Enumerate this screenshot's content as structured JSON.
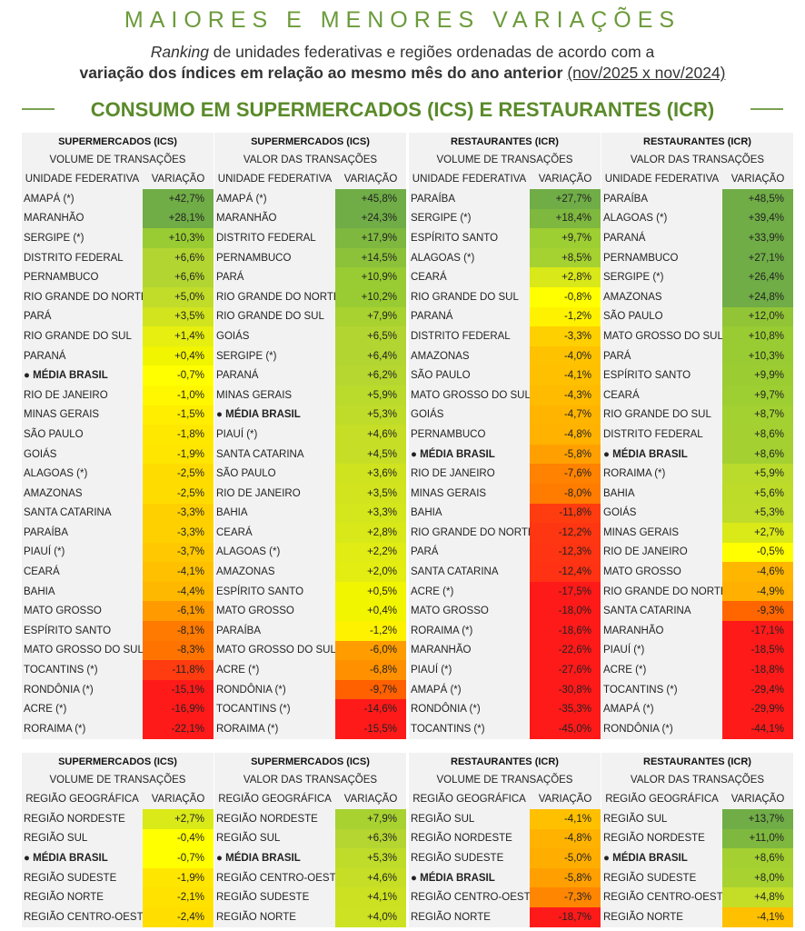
{
  "header": {
    "title": "MAIORES E MENORES VARIAÇÕES",
    "subtitle_italic": "Ranking",
    "subtitle_line1_rest": " de unidades federativas e regiões ordenadas de acordo com a",
    "subtitle_bold": "variação dos índices em relação ao mesmo mês do ano anterior",
    "subtitle_period": "(nov/2025 x nov/2024)",
    "section_title": "CONSUMO EM SUPERMERCADOS (ICS) E RESTAURANTES (ICR)"
  },
  "uf_tables": [
    {
      "group": "SUPERMERCADOS (ICS)",
      "metric": "VOLUME DE TRANSAÇÕES",
      "col_name": "UNIDADE FEDERATIVA",
      "col_value": "VARIAÇÃO",
      "rows": [
        {
          "name": "AMAPÁ (*)",
          "value": "+42,7%",
          "color": "#70ad47"
        },
        {
          "name": "MARANHÃO",
          "value": "+28,1%",
          "color": "#70ad47"
        },
        {
          "name": "SERGIPE (*)",
          "value": "+10,3%",
          "color": "#99cc33"
        },
        {
          "name": "DISTRITO FEDERAL",
          "value": "+6,6%",
          "color": "#b3d532"
        },
        {
          "name": "PERNAMBUCO",
          "value": "+6,6%",
          "color": "#b3d532"
        },
        {
          "name": "RIO GRANDE DO NORTE",
          "value": "+5,0%",
          "color": "#c2dc2a"
        },
        {
          "name": "PARÁ",
          "value": "+3,5%",
          "color": "#d1e41e"
        },
        {
          "name": "RIO GRANDE DO SUL",
          "value": "+1,4%",
          "color": "#e6ef10"
        },
        {
          "name": "PARANÁ",
          "value": "+0,4%",
          "color": "#f2f500"
        },
        {
          "name": "● MÉDIA BRASIL",
          "value": "-0,7%",
          "color": "#ffff00",
          "bold": true
        },
        {
          "name": "RIO DE JANEIRO",
          "value": "-1,0%",
          "color": "#fff700"
        },
        {
          "name": "MINAS GERAIS",
          "value": "-1,5%",
          "color": "#ffee00"
        },
        {
          "name": "SÃO PAULO",
          "value": "-1,8%",
          "color": "#ffe800"
        },
        {
          "name": "GOIÁS",
          "value": "-1,9%",
          "color": "#ffe600"
        },
        {
          "name": "ALAGOAS (*)",
          "value": "-2,5%",
          "color": "#ffdc00"
        },
        {
          "name": "AMAZONAS",
          "value": "-2,5%",
          "color": "#ffdc00"
        },
        {
          "name": "SANTA CATARINA",
          "value": "-3,3%",
          "color": "#ffd000"
        },
        {
          "name": "PARAÍBA",
          "value": "-3,3%",
          "color": "#ffd000"
        },
        {
          "name": "PIAUÍ (*)",
          "value": "-3,7%",
          "color": "#ffc800"
        },
        {
          "name": "CEARÁ",
          "value": "-4,1%",
          "color": "#ffc000"
        },
        {
          "name": "BAHIA",
          "value": "-4,4%",
          "color": "#ffb800"
        },
        {
          "name": "MATO GROSSO",
          "value": "-6,1%",
          "color": "#ff9a00"
        },
        {
          "name": "ESPÍRITO SANTO",
          "value": "-8,1%",
          "color": "#ff7a00"
        },
        {
          "name": "MATO GROSSO DO SUL",
          "value": "-8,3%",
          "color": "#ff7400"
        },
        {
          "name": "TOCANTINS (*)",
          "value": "-11,8%",
          "color": "#ff3c10"
        },
        {
          "name": "RONDÔNIA (*)",
          "value": "-15,1%",
          "color": "#ff1a1a"
        },
        {
          "name": "ACRE (*)",
          "value": "-16,9%",
          "color": "#ff1a1a"
        },
        {
          "name": "RORAIMA (*)",
          "value": "-22,1%",
          "color": "#ff1a1a"
        }
      ]
    },
    {
      "group": "SUPERMERCADOS (ICS)",
      "metric": "VALOR DAS TRANSAÇÕES",
      "col_name": "UNIDADE FEDERATIVA",
      "col_value": "VARIAÇÃO",
      "rows": [
        {
          "name": "AMAPÁ (*)",
          "value": "+45,8%",
          "color": "#70ad47"
        },
        {
          "name": "MARANHÃO",
          "value": "+24,3%",
          "color": "#70ad47"
        },
        {
          "name": "DISTRITO FEDERAL",
          "value": "+17,9%",
          "color": "#7fb83f"
        },
        {
          "name": "PERNAMBUCO",
          "value": "+14,5%",
          "color": "#8cc23a"
        },
        {
          "name": "PARÁ",
          "value": "+10,9%",
          "color": "#99cc33"
        },
        {
          "name": "RIO GRANDE DO NORTE",
          "value": "+10,2%",
          "color": "#99cc33"
        },
        {
          "name": "RIO GRANDE DO SUL",
          "value": "+7,9%",
          "color": "#a8d230"
        },
        {
          "name": "GOIÁS",
          "value": "+6,5%",
          "color": "#b3d532"
        },
        {
          "name": "SERGIPE (*)",
          "value": "+6,4%",
          "color": "#b3d532"
        },
        {
          "name": "PARANÁ",
          "value": "+6,2%",
          "color": "#b6d730"
        },
        {
          "name": "MINAS GERAIS",
          "value": "+5,9%",
          "color": "#badb2c"
        },
        {
          "name": "● MÉDIA BRASIL",
          "value": "+5,3%",
          "color": "#c0dc2a",
          "bold": true
        },
        {
          "name": "PIAUÍ (*)",
          "value": "+4,6%",
          "color": "#c6df26"
        },
        {
          "name": "SANTA CATARINA",
          "value": "+4,5%",
          "color": "#c6df26"
        },
        {
          "name": "SÃO PAULO",
          "value": "+3,6%",
          "color": "#cfe31e"
        },
        {
          "name": "RIO DE JANEIRO",
          "value": "+3,5%",
          "color": "#d1e41e"
        },
        {
          "name": "BAHIA",
          "value": "+3,3%",
          "color": "#d4e61c"
        },
        {
          "name": "CEARÁ",
          "value": "+2,8%",
          "color": "#d9e818"
        },
        {
          "name": "ALAGOAS (*)",
          "value": "+2,2%",
          "color": "#e0ec14"
        },
        {
          "name": "AMAZONAS",
          "value": "+2,0%",
          "color": "#e3ed12"
        },
        {
          "name": "ESPÍRITO SANTO",
          "value": "+0,5%",
          "color": "#f2f500"
        },
        {
          "name": "MATO GROSSO",
          "value": "+0,4%",
          "color": "#f2f500"
        },
        {
          "name": "PARAÍBA",
          "value": "-1,2%",
          "color": "#fff200"
        },
        {
          "name": "MATO GROSSO DO SUL",
          "value": "-6,0%",
          "color": "#ff9c00"
        },
        {
          "name": "ACRE (*)",
          "value": "-6,8%",
          "color": "#ff9000"
        },
        {
          "name": "RONDÔNIA (*)",
          "value": "-9,7%",
          "color": "#ff6000"
        },
        {
          "name": "TOCANTINS (*)",
          "value": "-14,6%",
          "color": "#ff1a1a"
        },
        {
          "name": "RORAIMA (*)",
          "value": "-15,5%",
          "color": "#ff1a1a"
        }
      ]
    },
    {
      "group": "RESTAURANTES (ICR)",
      "metric": "VOLUME DE TRANSAÇÕES",
      "col_name": "UNIDADE FEDERATIVA",
      "col_value": "VARIAÇÃO",
      "rows": [
        {
          "name": "PARAÍBA",
          "value": "+27,7%",
          "color": "#70ad47"
        },
        {
          "name": "SERGIPE (*)",
          "value": "+18,4%",
          "color": "#7fb83f"
        },
        {
          "name": "ESPÍRITO SANTO",
          "value": "+9,7%",
          "color": "#9dce32"
        },
        {
          "name": "ALAGOAS (*)",
          "value": "+8,5%",
          "color": "#a5d131"
        },
        {
          "name": "CEARÁ",
          "value": "+2,8%",
          "color": "#d9e818"
        },
        {
          "name": "RIO GRANDE DO SUL",
          "value": "-0,8%",
          "color": "#ffff00"
        },
        {
          "name": "PARANÁ",
          "value": "-1,2%",
          "color": "#fff200"
        },
        {
          "name": "DISTRITO FEDERAL",
          "value": "-3,3%",
          "color": "#ffd000"
        },
        {
          "name": "AMAZONAS",
          "value": "-4,0%",
          "color": "#ffc200"
        },
        {
          "name": "SÃO PAULO",
          "value": "-4,1%",
          "color": "#ffc000"
        },
        {
          "name": "MATO GROSSO DO SUL",
          "value": "-4,3%",
          "color": "#ffbb00"
        },
        {
          "name": "GOIÁS",
          "value": "-4,7%",
          "color": "#ffb400"
        },
        {
          "name": "PERNAMBUCO",
          "value": "-4,8%",
          "color": "#ffb200"
        },
        {
          "name": "● MÉDIA BRASIL",
          "value": "-5,8%",
          "color": "#ffa000",
          "bold": true
        },
        {
          "name": "RIO DE JANEIRO",
          "value": "-7,6%",
          "color": "#ff8200"
        },
        {
          "name": "MINAS GERAIS",
          "value": "-8,0%",
          "color": "#ff7c00"
        },
        {
          "name": "BAHIA",
          "value": "-11,8%",
          "color": "#ff3c10"
        },
        {
          "name": "RIO GRANDE DO NORTE",
          "value": "-12,2%",
          "color": "#ff3612"
        },
        {
          "name": "PARÁ",
          "value": "-12,3%",
          "color": "#ff3412"
        },
        {
          "name": "SANTA CATARINA",
          "value": "-12,4%",
          "color": "#ff3214"
        },
        {
          "name": "ACRE (*)",
          "value": "-17,5%",
          "color": "#ff1a1a"
        },
        {
          "name": "MATO GROSSO",
          "value": "-18,0%",
          "color": "#ff1a1a"
        },
        {
          "name": "RORAIMA (*)",
          "value": "-18,6%",
          "color": "#ff1a1a"
        },
        {
          "name": "MARANHÃO",
          "value": "-22,6%",
          "color": "#ff1a1a"
        },
        {
          "name": "PIAUÍ (*)",
          "value": "-27,6%",
          "color": "#ff1a1a"
        },
        {
          "name": "AMAPÁ (*)",
          "value": "-30,8%",
          "color": "#ff1a1a"
        },
        {
          "name": "RONDÔNIA (*)",
          "value": "-35,3%",
          "color": "#ff1a1a"
        },
        {
          "name": "TOCANTINS (*)",
          "value": "-45,0%",
          "color": "#ff1a1a"
        }
      ]
    },
    {
      "group": "RESTAURANTES (ICR)",
      "metric": "VALOR DAS TRANSAÇÕES",
      "col_name": "UNIDADE FEDERATIVA",
      "col_value": "VARIAÇÃO",
      "rows": [
        {
          "name": "PARAÍBA",
          "value": "+48,5%",
          "color": "#70ad47"
        },
        {
          "name": "ALAGOAS (*)",
          "value": "+39,4%",
          "color": "#70ad47"
        },
        {
          "name": "PARANÁ",
          "value": "+33,9%",
          "color": "#70ad47"
        },
        {
          "name": "PERNAMBUCO",
          "value": "+27,1%",
          "color": "#70ad47"
        },
        {
          "name": "SERGIPE (*)",
          "value": "+26,4%",
          "color": "#70ad47"
        },
        {
          "name": "AMAZONAS",
          "value": "+24,8%",
          "color": "#70ad47"
        },
        {
          "name": "SÃO PAULO",
          "value": "+12,0%",
          "color": "#92c536"
        },
        {
          "name": "MATO GROSSO DO SUL",
          "value": "+10,8%",
          "color": "#99cc33"
        },
        {
          "name": "PARÁ",
          "value": "+10,3%",
          "color": "#99cc33"
        },
        {
          "name": "ESPÍRITO SANTO",
          "value": "+9,9%",
          "color": "#9bcd32"
        },
        {
          "name": "CEARÁ",
          "value": "+9,7%",
          "color": "#9dce32"
        },
        {
          "name": "RIO GRANDE DO SUL",
          "value": "+8,7%",
          "color": "#a3d131"
        },
        {
          "name": "DISTRITO FEDERAL",
          "value": "+8,6%",
          "color": "#a4d131"
        },
        {
          "name": "● MÉDIA BRASIL",
          "value": "+8,6%",
          "color": "#a4d131",
          "bold": true
        },
        {
          "name": "RORAIMA (*)",
          "value": "+5,9%",
          "color": "#badb2c"
        },
        {
          "name": "BAHIA",
          "value": "+5,6%",
          "color": "#bddc2a"
        },
        {
          "name": "GOIÁS",
          "value": "+5,3%",
          "color": "#c0dc2a"
        },
        {
          "name": "MINAS GERAIS",
          "value": "+2,7%",
          "color": "#dae918"
        },
        {
          "name": "RIO DE JANEIRO",
          "value": "-0,5%",
          "color": "#ffff00"
        },
        {
          "name": "MATO GROSSO",
          "value": "-4,6%",
          "color": "#ffb600"
        },
        {
          "name": "RIO GRANDE DO NORTE",
          "value": "-4,9%",
          "color": "#ffb000"
        },
        {
          "name": "SANTA CATARINA",
          "value": "-9,3%",
          "color": "#ff6600"
        },
        {
          "name": "MARANHÃO",
          "value": "-17,1%",
          "color": "#ff1a1a"
        },
        {
          "name": "PIAUÍ (*)",
          "value": "-18,5%",
          "color": "#ff1a1a"
        },
        {
          "name": "ACRE (*)",
          "value": "-18,8%",
          "color": "#ff1a1a"
        },
        {
          "name": "TOCANTINS (*)",
          "value": "-29,4%",
          "color": "#ff1a1a"
        },
        {
          "name": "AMAPÁ (*)",
          "value": "-29,9%",
          "color": "#ff1a1a"
        },
        {
          "name": "RONDÔNIA (*)",
          "value": "-44,1%",
          "color": "#ff1a1a"
        }
      ]
    }
  ],
  "region_tables": [
    {
      "group": "SUPERMERCADOS (ICS)",
      "metric": "VOLUME DE TRANSAÇÕES",
      "col_name": "REGIÃO GEOGRÁFICA",
      "col_value": "VARIAÇÃO",
      "rows": [
        {
          "name": "REGIÃO NORDESTE",
          "value": "+2,7%",
          "color": "#dae918"
        },
        {
          "name": "REGIÃO SUL",
          "value": "-0,4%",
          "color": "#ffff00"
        },
        {
          "name": "● MÉDIA BRASIL",
          "value": "-0,7%",
          "color": "#ffff00",
          "bold": true
        },
        {
          "name": "REGIÃO SUDESTE",
          "value": "-1,9%",
          "color": "#ffe600"
        },
        {
          "name": "REGIÃO NORTE",
          "value": "-2,1%",
          "color": "#ffe200"
        },
        {
          "name": "REGIÃO CENTRO-OESTE",
          "value": "-2,4%",
          "color": "#ffde00"
        }
      ]
    },
    {
      "group": "SUPERMERCADOS (ICS)",
      "metric": "VALOR DAS TRANSAÇÕES",
      "col_name": "REGIÃO GEOGRÁFICA",
      "col_value": "VARIAÇÃO",
      "rows": [
        {
          "name": "REGIÃO NORDESTE",
          "value": "+7,9%",
          "color": "#a8d230"
        },
        {
          "name": "REGIÃO SUL",
          "value": "+6,3%",
          "color": "#b5d631"
        },
        {
          "name": "● MÉDIA BRASIL",
          "value": "+5,3%",
          "color": "#c0dc2a",
          "bold": true
        },
        {
          "name": "REGIÃO CENTRO-OESTE",
          "value": "+4,6%",
          "color": "#c6df26"
        },
        {
          "name": "REGIÃO SUDESTE",
          "value": "+4,1%",
          "color": "#cbe122"
        },
        {
          "name": "REGIÃO NORTE",
          "value": "+4,0%",
          "color": "#cce222"
        }
      ]
    },
    {
      "group": "RESTAURANTES (ICR)",
      "metric": "VOLUME DE TRANSAÇÕES",
      "col_name": "REGIÃO GEOGRÁFICA",
      "col_value": "VARIAÇÃO",
      "rows": [
        {
          "name": "REGIÃO SUL",
          "value": "-4,1%",
          "color": "#ffc000"
        },
        {
          "name": "REGIÃO NORDESTE",
          "value": "-4,8%",
          "color": "#ffb200"
        },
        {
          "name": "REGIÃO SUDESTE",
          "value": "-5,0%",
          "color": "#ffae00"
        },
        {
          "name": "● MÉDIA BRASIL",
          "value": "-5,8%",
          "color": "#ffa000",
          "bold": true
        },
        {
          "name": "REGIÃO CENTRO-OESTE",
          "value": "-7,3%",
          "color": "#ff8600"
        },
        {
          "name": "REGIÃO NORTE",
          "value": "-18,7%",
          "color": "#ff1a1a"
        }
      ]
    },
    {
      "group": "RESTAURANTES (ICR)",
      "metric": "VALOR DAS TRANSAÇÕES",
      "col_name": "REGIÃO GEOGRÁFICA",
      "col_value": "VARIAÇÃO",
      "rows": [
        {
          "name": "REGIÃO SUL",
          "value": "+13,7%",
          "color": "#70ad47"
        },
        {
          "name": "REGIÃO NORDESTE",
          "value": "+11,0%",
          "color": "#7fb83f"
        },
        {
          "name": "● MÉDIA BRASIL",
          "value": "+8,6%",
          "color": "#a4d131",
          "bold": true
        },
        {
          "name": "REGIÃO SUDESTE",
          "value": "+8,0%",
          "color": "#a8d230"
        },
        {
          "name": "REGIÃO CENTRO-OESTE",
          "value": "+4,8%",
          "color": "#c4de28"
        },
        {
          "name": "REGIÃO NORTE",
          "value": "-4,1%",
          "color": "#ffc000"
        }
      ]
    }
  ]
}
